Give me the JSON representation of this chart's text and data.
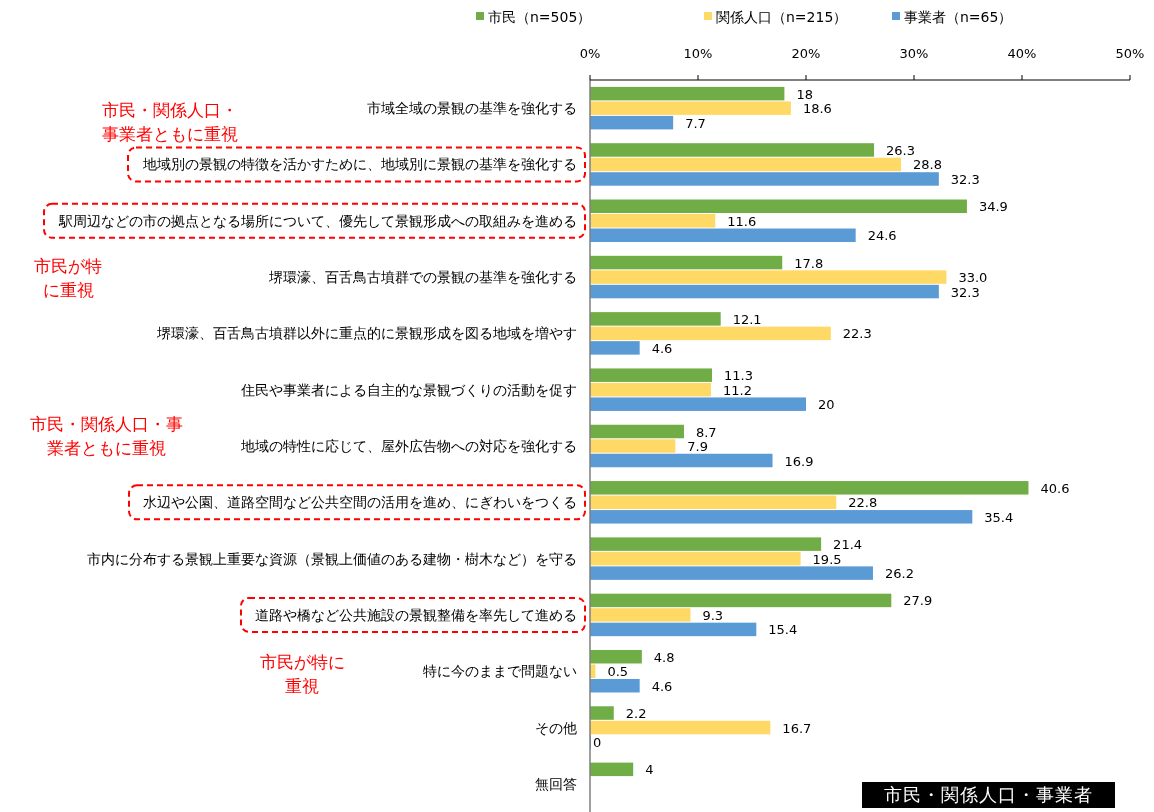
{
  "chart_data": {
    "type": "bar",
    "orientation": "horizontal",
    "categories": [
      "市域全域の景観の基準を強化する",
      "地域別の景観の特徴を活かすために、地域別に景観の基準を強化する",
      "駅周辺などの市の拠点となる場所について、優先して景観形成への取組みを進める",
      "堺環濠、百舌鳥古墳群での景観の基準を強化する",
      "堺環濠、百舌鳥古墳群以外に重点的に景観形成を図る地域を増やす",
      "住民や事業者による自主的な景観づくりの活動を促す",
      "地域の特性に応じて、屋外広告物への対応を強化する",
      "水辺や公園、道路空間など公共空間の活用を進め、にぎわいをつくる",
      "市内に分布する景観上重要な資源（景観上価値のある建物・樹木など）を守る",
      "道路や橋など公共施設の景観整備を率先して進める",
      "特に今のままで問題ない",
      "その他",
      "無回答"
    ],
    "series": [
      {
        "name": "市民（n=505）",
        "color": "#70ad47",
        "values": [
          18,
          26.3,
          34.9,
          17.8,
          12.1,
          11.3,
          8.7,
          40.6,
          21.4,
          27.9,
          4.8,
          2.2,
          4
        ],
        "value_labels": [
          "18",
          "26.3",
          "34.9",
          "17.8",
          "12.1",
          "11.3",
          "8.7",
          "40.6",
          "21.4",
          "27.9",
          "4.8",
          "2.2",
          "4"
        ]
      },
      {
        "name": "関係人口（n=215）",
        "color": "#ffd966",
        "values": [
          18.6,
          28.8,
          11.6,
          33.0,
          22.3,
          11.2,
          7.9,
          22.8,
          19.5,
          9.3,
          0.5,
          16.7,
          null
        ],
        "value_labels": [
          "18.6",
          "28.8",
          "11.6",
          "33.0",
          "22.3",
          "11.2",
          "7.9",
          "22.8",
          "19.5",
          "9.3",
          "0.5",
          "16.7",
          null
        ]
      },
      {
        "name": "事業者（n=65）",
        "color": "#5b9bd5",
        "values": [
          7.7,
          32.3,
          24.6,
          32.3,
          4.6,
          20,
          16.9,
          35.4,
          26.2,
          15.4,
          4.6,
          0,
          null
        ],
        "value_labels": [
          "7.7",
          "32.3",
          "24.6",
          "32.3",
          "4.6",
          "20",
          "16.9",
          "35.4",
          "26.2",
          "15.4",
          "4.6",
          "0",
          null
        ]
      }
    ],
    "xlim": [
      0,
      50
    ],
    "xticks": [
      {
        "value": 0,
        "label": "0%"
      },
      {
        "value": 10,
        "label": "10%"
      },
      {
        "value": 20,
        "label": "20%"
      },
      {
        "value": 30,
        "label": "30%"
      },
      {
        "value": 40,
        "label": "40%"
      },
      {
        "value": 50,
        "label": "50%"
      }
    ],
    "legend": "top",
    "grid": false,
    "annotations": [
      "市民・関係人口・事業者ともに重視",
      "市民が特に重視",
      "市民・関係人口・事業者ともに重視",
      "市民が特に重視",
      "市民・関係人口・事業者"
    ]
  }
}
